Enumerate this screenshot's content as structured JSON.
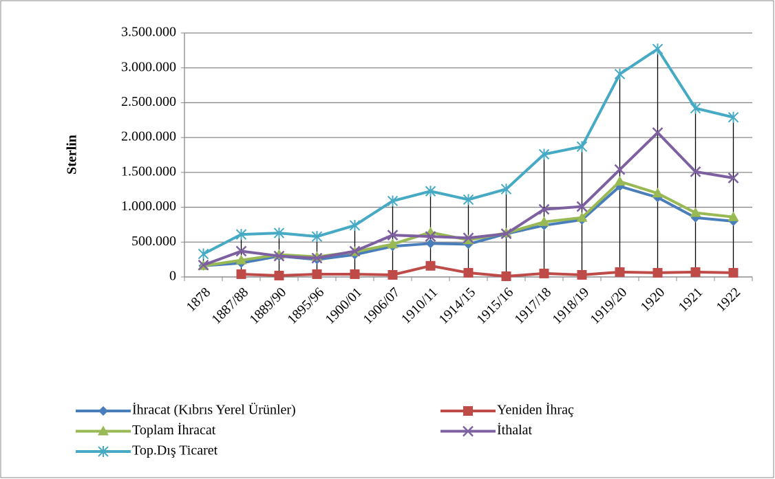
{
  "chart_data": {
    "type": "line",
    "ylabel": "Sterlin",
    "categories": [
      "1878",
      "1887/88",
      "1889/90",
      "1895/96",
      "1900/01",
      "1906/07",
      "1910/11",
      "1914/15",
      "1915/16",
      "1917/18",
      "1918/19",
      "1919/20",
      "1920",
      "1921",
      "1922"
    ],
    "series": [
      {
        "name": "İhracat (Kıbrıs Yerel Ürünler)",
        "color": "#4a7ebb",
        "marker": "diamond",
        "values": [
          160000,
          200000,
          300000,
          250000,
          320000,
          440000,
          480000,
          470000,
          620000,
          740000,
          820000,
          1300000,
          1140000,
          850000,
          800000
        ]
      },
      {
        "name": "Yeniden İhraç",
        "color": "#be4b48",
        "marker": "square",
        "values": [
          null,
          40000,
          20000,
          40000,
          40000,
          30000,
          160000,
          60000,
          10000,
          50000,
          30000,
          70000,
          60000,
          70000,
          60000
        ]
      },
      {
        "name": "Toplam İhracat",
        "color": "#98b954",
        "marker": "triangle",
        "values": [
          160000,
          240000,
          320000,
          290000,
          360000,
          470000,
          640000,
          530000,
          630000,
          790000,
          850000,
          1370000,
          1200000,
          920000,
          860000
        ]
      },
      {
        "name": "İthalat",
        "color": "#7d60a0",
        "marker": "x",
        "values": [
          170000,
          370000,
          300000,
          270000,
          370000,
          600000,
          580000,
          560000,
          620000,
          970000,
          1010000,
          1540000,
          2070000,
          1510000,
          1420000
        ]
      },
      {
        "name": "Top.Dış Ticaret",
        "color": "#46aac5",
        "marker": "star",
        "values": [
          330000,
          610000,
          630000,
          580000,
          740000,
          1090000,
          1230000,
          1110000,
          1260000,
          1760000,
          1870000,
          2910000,
          3270000,
          2420000,
          2290000
        ]
      }
    ],
    "ylim": [
      0,
      3500000
    ],
    "yticks": [
      0,
      {
        "value": 500000,
        "label": "500.000"
      },
      {
        "value": 1000000,
        "label": "1.000.000"
      },
      {
        "value": 1500000,
        "label": "1.500.000"
      },
      {
        "value": 2000000,
        "label": "2.000.000"
      },
      {
        "value": 2500000,
        "label": "2.500.000"
      },
      {
        "value": 3000000,
        "label": "3.000.000"
      },
      {
        "value": 3500000,
        "label": "3.500.000"
      }
    ],
    "grid": true,
    "high_low_lines": true,
    "legend": "bottom"
  }
}
